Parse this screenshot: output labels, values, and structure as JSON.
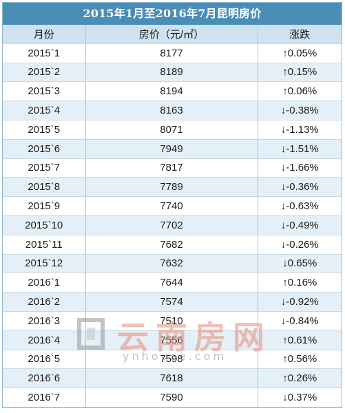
{
  "table": {
    "title": "2015年1月至2016年7月昆明房价",
    "headers": [
      "月份",
      "房价（元/㎡）",
      "涨跌"
    ],
    "rows": [
      [
        "2015`1",
        "8177",
        "↑0.05%"
      ],
      [
        "2015`2",
        "8189",
        "↑0.15%"
      ],
      [
        "2015`3",
        "8194",
        "↑0.06%"
      ],
      [
        "2015`4",
        "8163",
        "↓-0.38%"
      ],
      [
        "2015`5",
        "8071",
        "↓-1.13%"
      ],
      [
        "2015`6",
        "7949",
        "↓-1.51%"
      ],
      [
        "2015`7",
        "7817",
        "↓-1.66%"
      ],
      [
        "2015`8",
        "7789",
        "↓-0.36%"
      ],
      [
        "2015`9",
        "7740",
        "↓-0.63%"
      ],
      [
        "2015`10",
        "7702",
        "↓-0.49%"
      ],
      [
        "2015`11",
        "7682",
        "↓-0.26%"
      ],
      [
        "2015`12",
        "7632",
        "↓0.65%"
      ],
      [
        "2016`1",
        "7644",
        "↑0.16%"
      ],
      [
        "2016`2",
        "7574",
        "↓-0.92%"
      ],
      [
        "2016`3",
        "7510",
        "↓-0.84%"
      ],
      [
        "2016`4",
        "7556",
        "↑0.61%"
      ],
      [
        "2016`5",
        "7598",
        "↑0.56%"
      ],
      [
        "2016`6",
        "7618",
        "↑0.26%"
      ],
      [
        "2016`7",
        "7590",
        "↓0.37%"
      ]
    ]
  },
  "watermark": {
    "cn": "云南房网",
    "en": "ynhouse.com"
  }
}
